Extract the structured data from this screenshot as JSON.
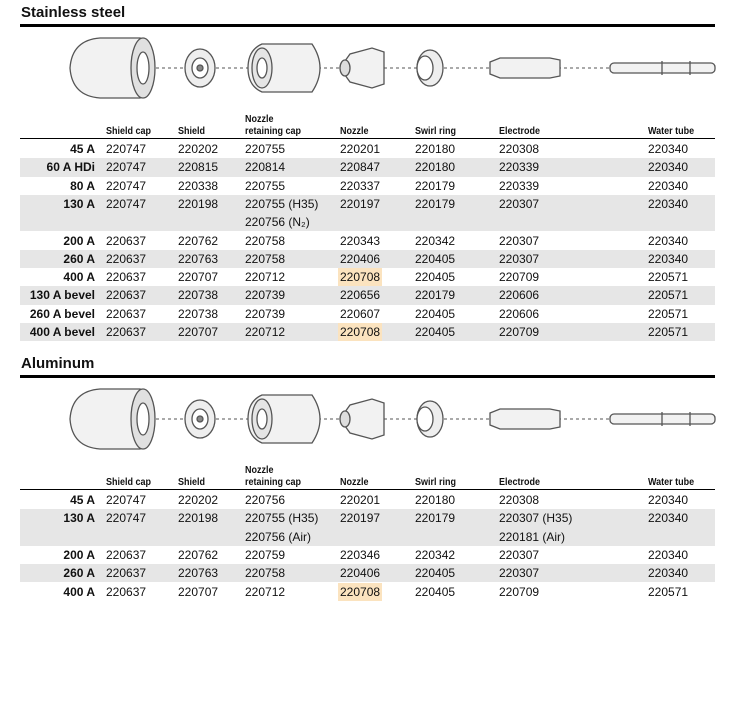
{
  "sections": [
    {
      "title": "Stainless steel",
      "headers": [
        "Shield cap",
        "Shield",
        "Nozzle retaining cap",
        "Nozzle",
        "Swirl ring",
        "Electrode",
        "Water tube"
      ],
      "rows": [
        {
          "label": "45 A",
          "cells": [
            "220747",
            "220202",
            "220755",
            "220201",
            "220180",
            "220308",
            "220340"
          ]
        },
        {
          "label": "60 A HDi",
          "cells": [
            "220747",
            "220815",
            "220814",
            "220847",
            "220180",
            "220339",
            "220340"
          ]
        },
        {
          "label": "80 A",
          "cells": [
            "220747",
            "220338",
            "220755",
            "220337",
            "220179",
            "220339",
            "220340"
          ]
        },
        {
          "label": "130 A",
          "cells": [
            "220747",
            "220198",
            [
              "220755 (H35)",
              "220756 (N₂)"
            ],
            "220197",
            "220179",
            "220307",
            "220340"
          ]
        },
        {
          "label": "200 A",
          "cells": [
            "220637",
            "220762",
            "220758",
            "220343",
            "220342",
            "220307",
            "220340"
          ]
        },
        {
          "label": "260 A",
          "cells": [
            "220637",
            "220763",
            "220758",
            "220406",
            "220405",
            "220307",
            "220340"
          ]
        },
        {
          "label": "400 A",
          "cells": [
            "220637",
            "220707",
            "220712",
            {
              "text": "220708",
              "highlight": true
            },
            "220405",
            "220709",
            "220571"
          ]
        },
        {
          "label": "130 A bevel",
          "cells": [
            "220637",
            "220738",
            "220739",
            "220656",
            "220179",
            "220606",
            "220571"
          ]
        },
        {
          "label": "260 A bevel",
          "cells": [
            "220637",
            "220738",
            "220739",
            "220607",
            "220405",
            "220606",
            "220571"
          ]
        },
        {
          "label": "400 A bevel",
          "cells": [
            "220637",
            "220707",
            "220712",
            {
              "text": "220708",
              "highlight": true
            },
            "220405",
            "220709",
            "220571"
          ]
        }
      ]
    },
    {
      "title": "Aluminum",
      "headers": [
        "Shield cap",
        "Shield",
        "Nozzle retaining cap",
        "Nozzle",
        "Swirl ring",
        "Electrode",
        "Water tube"
      ],
      "rows": [
        {
          "label": "45 A",
          "cells": [
            "220747",
            "220202",
            "220756",
            "220201",
            "220180",
            "220308",
            "220340"
          ]
        },
        {
          "label": "130 A",
          "cells": [
            "220747",
            "220198",
            [
              "220755 (H35)",
              "220756 (Air)"
            ],
            "220197",
            "220179",
            [
              "220307 (H35)",
              "220181 (Air)"
            ],
            "220340"
          ]
        },
        {
          "label": "200 A",
          "cells": [
            "220637",
            "220762",
            "220759",
            "220346",
            "220342",
            "220307",
            "220340"
          ]
        },
        {
          "label": "260 A",
          "cells": [
            "220637",
            "220763",
            "220758",
            "220406",
            "220405",
            "220307",
            "220340"
          ]
        },
        {
          "label": "400 A",
          "cells": [
            "220637",
            "220707",
            "220712",
            {
              "text": "220708",
              "highlight": true
            },
            "220405",
            "220709",
            "220571"
          ]
        }
      ]
    }
  ]
}
